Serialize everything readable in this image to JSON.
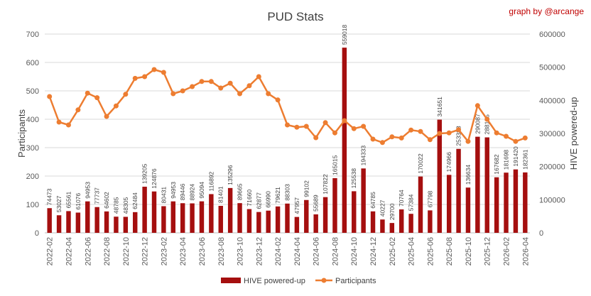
{
  "chart_data": {
    "type": "bar+line",
    "title": "PUD Stats",
    "credit": "graph by @arcange",
    "ylabel_left": "Participants",
    "ylabel_right": "HIVE powered-up",
    "ylim_left": [
      0,
      700
    ],
    "ylim_right": [
      0,
      600000
    ],
    "yticks_left": [
      0,
      100,
      200,
      300,
      400,
      500,
      600,
      700
    ],
    "yticks_right": [
      0,
      100000,
      200000,
      300000,
      400000,
      500000,
      600000
    ],
    "categories": [
      "2022-02",
      "2022-03",
      "2022-04",
      "2022-05",
      "2022-06",
      "2022-07",
      "2022-08",
      "2022-09",
      "2022-10",
      "2022-11",
      "2022-12",
      "2023-01",
      "2023-02",
      "2023-03",
      "2023-04",
      "2023-05",
      "2023-06",
      "2023-07",
      "2023-08",
      "2023-09",
      "2023-10",
      "2023-11",
      "2023-12",
      "2024-01",
      "2024-02",
      "2024-03",
      "2024-04",
      "2024-05",
      "2024-06",
      "2024-07",
      "2024-08",
      "2024-09",
      "2024-10",
      "2024-11",
      "2024-12",
      "2025-01",
      "2025-02",
      "2025-03",
      "2025-04",
      "2025-05",
      "2025-06",
      "2025-07",
      "2025-08",
      "2025-09",
      "2025-10",
      "2025-11",
      "2025-12",
      "2026-01",
      "2026-02",
      "2026-03",
      "2026-04"
    ],
    "x_tick_labels": [
      "2022-02",
      "2022-04",
      "2022-06",
      "2022-08",
      "2022-10",
      "2022-12",
      "2023-02",
      "2023-04",
      "2023-06",
      "2023-08",
      "2023-10",
      "2023-12",
      "2024-02",
      "2024-04",
      "2024-06",
      "2024-08",
      "2024-10",
      "2024-12",
      "2025-02",
      "2025-04",
      "2025-06",
      "2025-08",
      "2025-10",
      "2025-12",
      "2026-02",
      "2026-04"
    ],
    "series": [
      {
        "name": "HIVE powered-up",
        "type": "bar",
        "axis": "right",
        "color": "#a50f0f",
        "values": [
          74473,
          53027,
          65561,
          61076,
          94953,
          77737,
          64602,
          48785,
          48305,
          62484,
          139205,
          124876,
          80431,
          94953,
          89446,
          88924,
          95094,
          116892,
          81401,
          135296,
          89665,
          71660,
          62877,
          66990,
          79621,
          88303,
          47957,
          99102,
          55689,
          107822,
          165015,
          559018,
          125538,
          194333,
          64785,
          40227,
          29700,
          70764,
          57384,
          170022,
          67798,
          341651,
          174966,
          253388,
          136634,
          290087,
          288155,
          167682,
          181698,
          191420,
          182361
        ],
        "labels": [
          "74473",
          "53027",
          "65561",
          "61076",
          "94953",
          "77737",
          "64602",
          "48785",
          "48305",
          "62484",
          "139205",
          "124876",
          "80431",
          "94953",
          "89446",
          "88924",
          "95094",
          "116892",
          "81401",
          "135296",
          "89665",
          "71660",
          "62877",
          "66990",
          "79621",
          "88303",
          "47957",
          "99102",
          "55689",
          "107822",
          "165015",
          "559018",
          "125538",
          "194333",
          "64785",
          "40227",
          "29700",
          "70764",
          "57384",
          "170022",
          "67798",
          "341651",
          "174966",
          "253388",
          "136634",
          "290087",
          "288155",
          "167682",
          "181698",
          "191420",
          "182361"
        ]
      },
      {
        "name": "Participants",
        "type": "line",
        "axis": "left",
        "color": "#ed7d31",
        "values": [
          480,
          390,
          380,
          433,
          492,
          476,
          410,
          447,
          488,
          544,
          550,
          575,
          565,
          490,
          500,
          515,
          533,
          533,
          510,
          527,
          490,
          518,
          550,
          490,
          468,
          380,
          372,
          375,
          335,
          388,
          352,
          395,
          367,
          375,
          330,
          318,
          338,
          334,
          362,
          357,
          328,
          350,
          352,
          363,
          322,
          448,
          400,
          352,
          340,
          322,
          334
        ]
      }
    ],
    "grid": "horizontal",
    "legend_position": "bottom-center"
  }
}
